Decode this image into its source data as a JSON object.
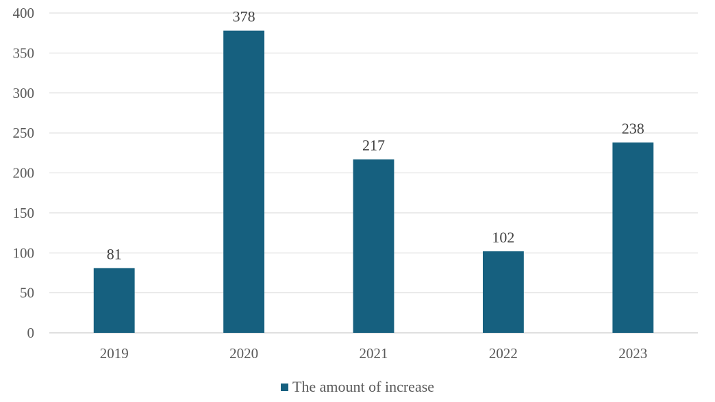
{
  "chart_data": {
    "type": "bar",
    "title": "",
    "xlabel": "",
    "ylabel": "",
    "categories": [
      "2019",
      "2020",
      "2021",
      "2022",
      "2023"
    ],
    "series": [
      {
        "name": "The amount of increase",
        "values": [
          81,
          378,
          217,
          102,
          238
        ],
        "color": "#16607f"
      }
    ],
    "ylim": [
      0,
      400
    ],
    "yticks": [
      0,
      50,
      100,
      150,
      200,
      250,
      300,
      350,
      400
    ],
    "grid": true,
    "gridColor": "#d9d9d9",
    "data_labels": true,
    "legend": {
      "position": "bottom"
    }
  }
}
